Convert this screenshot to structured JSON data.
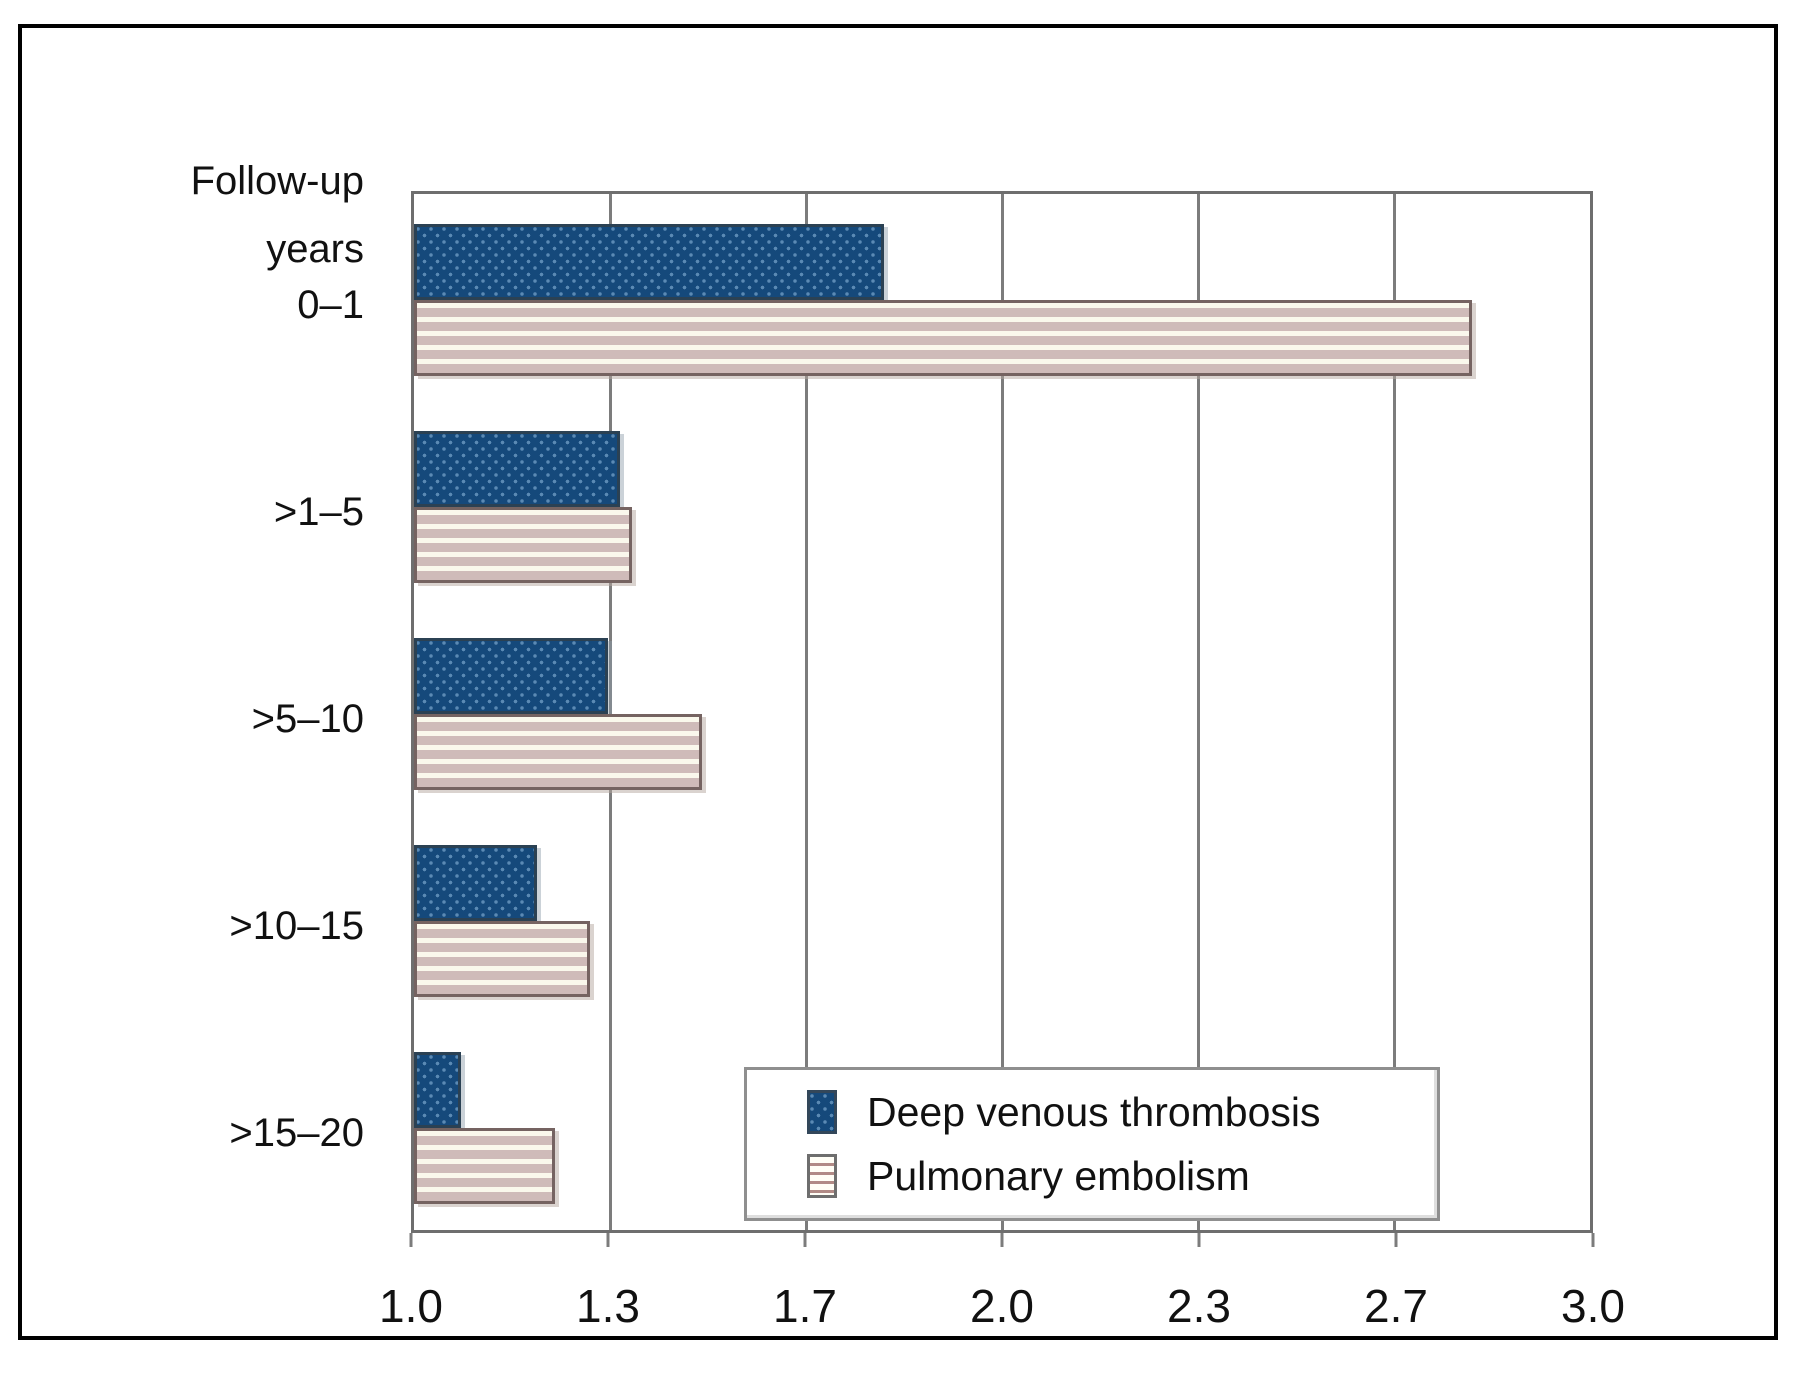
{
  "figure": {
    "axis_title_lines": [
      "Follow-up",
      "years"
    ],
    "legend": {
      "items": [
        {
          "label": "Deep venous thrombosis",
          "swatch": "blue-dotted"
        },
        {
          "label": "Pulmonary embolism",
          "swatch": "horizontal-striped"
        }
      ]
    },
    "colors": {
      "dvt_fill": "#15497B",
      "dvt_dot": "#5B8AB4",
      "pe_stripe": "#CFBBB9",
      "pe_background": "#FAF8EC",
      "gridline": "#7C7C7C",
      "outer_border": "#000000"
    }
  },
  "chart_data": {
    "type": "bar",
    "orientation": "horizontal",
    "title": "",
    "xlabel": "",
    "ylabel": "Follow-up years",
    "categories": [
      "0–1",
      ">1–5",
      ">5–10",
      ">10–15",
      ">15–20"
    ],
    "series": [
      {
        "name": "Deep venous thrombosis",
        "values": [
          1.8,
          1.35,
          1.33,
          1.21,
          1.08
        ]
      },
      {
        "name": "Pulmonary embolism",
        "values": [
          2.8,
          1.37,
          1.49,
          1.3,
          1.24
        ]
      }
    ],
    "xlim": [
      1.0,
      3.0
    ],
    "x_ticks": [
      {
        "label": "1.0",
        "value": 1.0
      },
      {
        "label": "1.3",
        "value": 1.3333
      },
      {
        "label": "1.7",
        "value": 1.6667
      },
      {
        "label": "2.0",
        "value": 2.0
      },
      {
        "label": "2.3",
        "value": 2.3333
      },
      {
        "label": "2.7",
        "value": 2.6667
      },
      {
        "label": "3.0",
        "value": 3.0
      }
    ],
    "grid": "vertical",
    "legend_position": "inside-bottom-right"
  }
}
